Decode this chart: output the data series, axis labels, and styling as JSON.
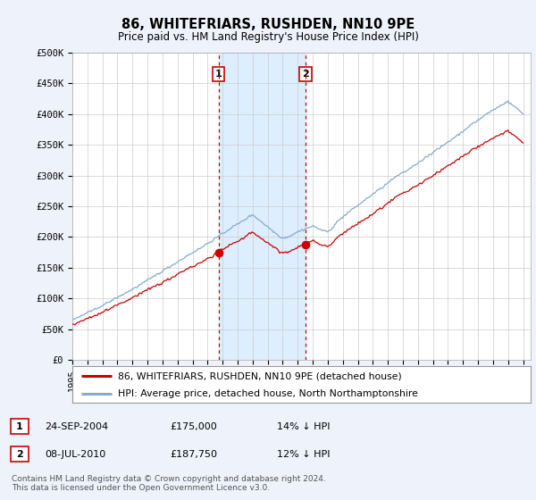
{
  "title": "86, WHITEFRIARS, RUSHDEN, NN10 9PE",
  "subtitle": "Price paid vs. HM Land Registry's House Price Index (HPI)",
  "ylabel_ticks": [
    "£0",
    "£50K",
    "£100K",
    "£150K",
    "£200K",
    "£250K",
    "£300K",
    "£350K",
    "£400K",
    "£450K",
    "£500K"
  ],
  "ytick_values": [
    0,
    50000,
    100000,
    150000,
    200000,
    250000,
    300000,
    350000,
    400000,
    450000,
    500000
  ],
  "ylim": [
    0,
    500000
  ],
  "xlim_start": 1995.0,
  "xlim_end": 2025.5,
  "background_color": "#eef2fa",
  "plot_bg_color": "#ffffff",
  "grid_color": "#cccccc",
  "line1_color": "#cc0000",
  "line2_color": "#88aacc",
  "marker1_color": "#cc0000",
  "vline_color": "#cc0000",
  "shade_color": "#ddeeff",
  "purchase1_year": 2004.73,
  "purchase1_price": 175000,
  "purchase2_year": 2010.52,
  "purchase2_price": 187750,
  "legend_line1": "86, WHITEFRIARS, RUSHDEN, NN10 9PE (detached house)",
  "legend_line2": "HPI: Average price, detached house, North Northamptonshire",
  "table_row1": [
    "1",
    "24-SEP-2004",
    "£175,000",
    "14% ↓ HPI"
  ],
  "table_row2": [
    "2",
    "08-JUL-2010",
    "£187,750",
    "12% ↓ HPI"
  ],
  "footnote": "Contains HM Land Registry data © Crown copyright and database right 2024.\nThis data is licensed under the Open Government Licence v3.0.",
  "xtick_years": [
    1995,
    1996,
    1997,
    1998,
    1999,
    2000,
    2001,
    2002,
    2003,
    2004,
    2005,
    2006,
    2007,
    2008,
    2009,
    2010,
    2011,
    2012,
    2013,
    2014,
    2015,
    2016,
    2017,
    2018,
    2019,
    2020,
    2021,
    2022,
    2023,
    2024,
    2025
  ]
}
